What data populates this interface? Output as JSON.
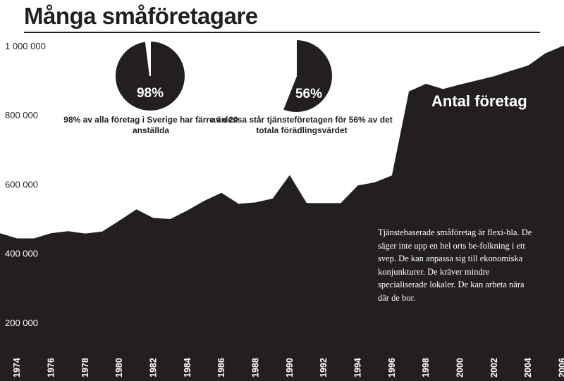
{
  "title": "Många småföretagare",
  "series_label": "Antal företag",
  "note": "Tjänstebaserade småföretag är flexi-bla. De säger inte upp en hel orts be-folkning i ett svep. De kan anpassa sig till ekonomiska konjunkturer. De kräver mindre specialiserade lokaler. De kan arbeta nära där de bor.",
  "pies": [
    {
      "value_pct": 98,
      "label": "98%",
      "caption": "98% av alla företag i Sverige har färre än 20 anställda"
    },
    {
      "value_pct": 56,
      "label": "56%",
      "caption": "av dessa står tjänsteföretagen för 56% av det totala förädlingsvärdet"
    }
  ],
  "colors": {
    "ink": "#231f20",
    "paper": "#ffffff"
  },
  "chart_data": {
    "type": "area",
    "title": "Många småföretagare",
    "series_name": "Antal företag",
    "x": [
      1973,
      1974,
      1975,
      1976,
      1977,
      1978,
      1979,
      1980,
      1981,
      1982,
      1983,
      1984,
      1985,
      1986,
      1987,
      1988,
      1989,
      1990,
      1991,
      1992,
      1993,
      1994,
      1995,
      1996,
      1997,
      1998,
      1999,
      2000,
      2001,
      2002,
      2003,
      2004,
      2005,
      2006
    ],
    "values": [
      458000,
      443000,
      443000,
      458000,
      464000,
      457000,
      463000,
      494000,
      527000,
      502000,
      499000,
      524000,
      552000,
      575000,
      543000,
      547000,
      558000,
      626000,
      545000,
      545000,
      545000,
      596000,
      605000,
      625000,
      868000,
      890000,
      875000,
      888000,
      900000,
      912000,
      928000,
      943000,
      978000,
      999000
    ],
    "ylim": [
      0,
      1080000
    ],
    "yticks": [
      200000,
      400000,
      600000,
      800000,
      1000000
    ],
    "ytick_labels": [
      "200 000",
      "400 000",
      "600 000",
      "800 000",
      "1 000 000"
    ],
    "xticks": [
      "1974",
      "1976",
      "1978",
      "1980",
      "1982",
      "1984",
      "1986",
      "1988",
      "1990",
      "1992",
      "1994",
      "1996",
      "1998",
      "2000",
      "2002",
      "2004",
      "2006"
    ],
    "xlabel": "",
    "ylabel": "",
    "grid": false
  }
}
